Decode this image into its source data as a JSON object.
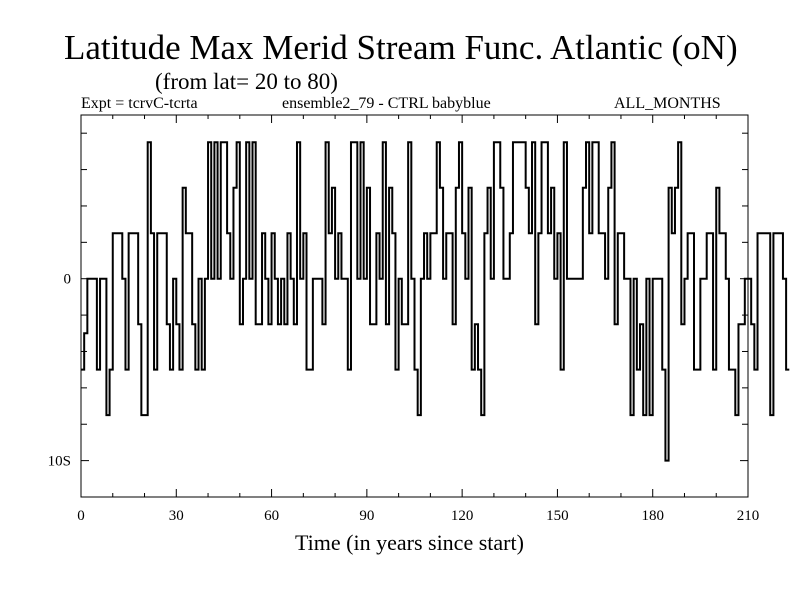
{
  "chart_data": {
    "type": "line",
    "title": "Latitude Max Merid Stream Func. Atlantic (oN)",
    "subtitle": "(from lat= 20 to 80)",
    "annotations": {
      "left": "Expt = tcrvC-tcrta",
      "center": "ensemble2_79 - CTRL babyblue",
      "right": "ALL_MONTHS"
    },
    "xlabel": "Time (in years since start)",
    "ylabel": "",
    "xlim": [
      0,
      210
    ],
    "ylim": [
      -12,
      9
    ],
    "x_ticks": [
      0,
      30,
      60,
      90,
      120,
      150,
      180,
      210
    ],
    "x_tick_labels": [
      "0",
      "30",
      "60",
      "90",
      "120",
      "150",
      "180",
      "210"
    ],
    "y_tick_values": [
      0,
      -10
    ],
    "y_tick_labels": [
      "0",
      "10S"
    ],
    "y_minor_ticks": [
      -10,
      -8,
      -6,
      -4,
      -2,
      0,
      2,
      4,
      6,
      8
    ],
    "series": [
      {
        "name": "max_latitude",
        "step": true,
        "x_start": 0,
        "x_step": 1,
        "values": [
          -5,
          -3,
          0,
          0,
          0,
          -5,
          0,
          0,
          -7.5,
          -5,
          2.5,
          2.5,
          2.5,
          0,
          -5,
          2.5,
          2.5,
          2.5,
          -2.5,
          -7.5,
          -7.5,
          7.5,
          2.5,
          -5,
          2.5,
          2.5,
          2.5,
          -2.5,
          -5,
          0,
          -2.5,
          -5,
          5,
          2.5,
          2.5,
          -2.5,
          -5,
          0,
          -5,
          0,
          7.5,
          0,
          7.5,
          0,
          7.5,
          7.5,
          2.5,
          0,
          5,
          7.5,
          -2.5,
          0,
          7.5,
          0,
          7.5,
          -2.5,
          -2.5,
          2.5,
          0,
          -2.5,
          2.5,
          0,
          -2.5,
          0,
          -2.5,
          2.5,
          0,
          -2.5,
          7.5,
          0,
          2.5,
          -5,
          -5,
          0,
          0,
          0,
          -2.5,
          7.5,
          2.5,
          5,
          0,
          2.5,
          0,
          0,
          -5,
          7.5,
          7.5,
          0,
          7.5,
          0,
          5,
          -2.5,
          -2.5,
          2.5,
          0,
          7.5,
          -2.5,
          5,
          2.5,
          -5,
          0,
          -2.5,
          -2.5,
          7.5,
          0,
          -5,
          -7.5,
          0,
          2.5,
          0,
          2.5,
          2.5,
          7.5,
          5,
          0,
          2.5,
          2.5,
          -2.5,
          5,
          7.5,
          2.5,
          0,
          5,
          -5,
          -2.5,
          -5,
          -7.5,
          2.5,
          5,
          0,
          7.5,
          7.5,
          5,
          0,
          0,
          2.5,
          7.5,
          7.5,
          7.5,
          7.5,
          5,
          2.5,
          7.5,
          -2.5,
          2.5,
          7.5,
          7.5,
          2.5,
          5,
          0,
          2.5,
          -5,
          7.5,
          0,
          0,
          0,
          0,
          0,
          5,
          7.5,
          2.5,
          7.5,
          7.5,
          2.5,
          2.5,
          0,
          5,
          7.5,
          -2.5,
          2.5,
          2.5,
          0,
          0,
          -7.5,
          0,
          -5,
          -2.5,
          -7.5,
          0,
          -7.5,
          0,
          0,
          0,
          -5,
          -10,
          5,
          2.5,
          5,
          7.5,
          -2.5,
          0,
          2.5,
          2.5,
          -5,
          -5,
          0,
          0,
          2.5,
          2.5,
          -5,
          5,
          2.5,
          2.5,
          0,
          -5,
          -5,
          -7.5,
          -2.5,
          -2.5,
          0,
          0,
          -2.5,
          -5,
          2.5,
          2.5,
          2.5,
          2.5,
          -7.5,
          2.5,
          2.5,
          2.5,
          0,
          -5
        ]
      }
    ]
  }
}
